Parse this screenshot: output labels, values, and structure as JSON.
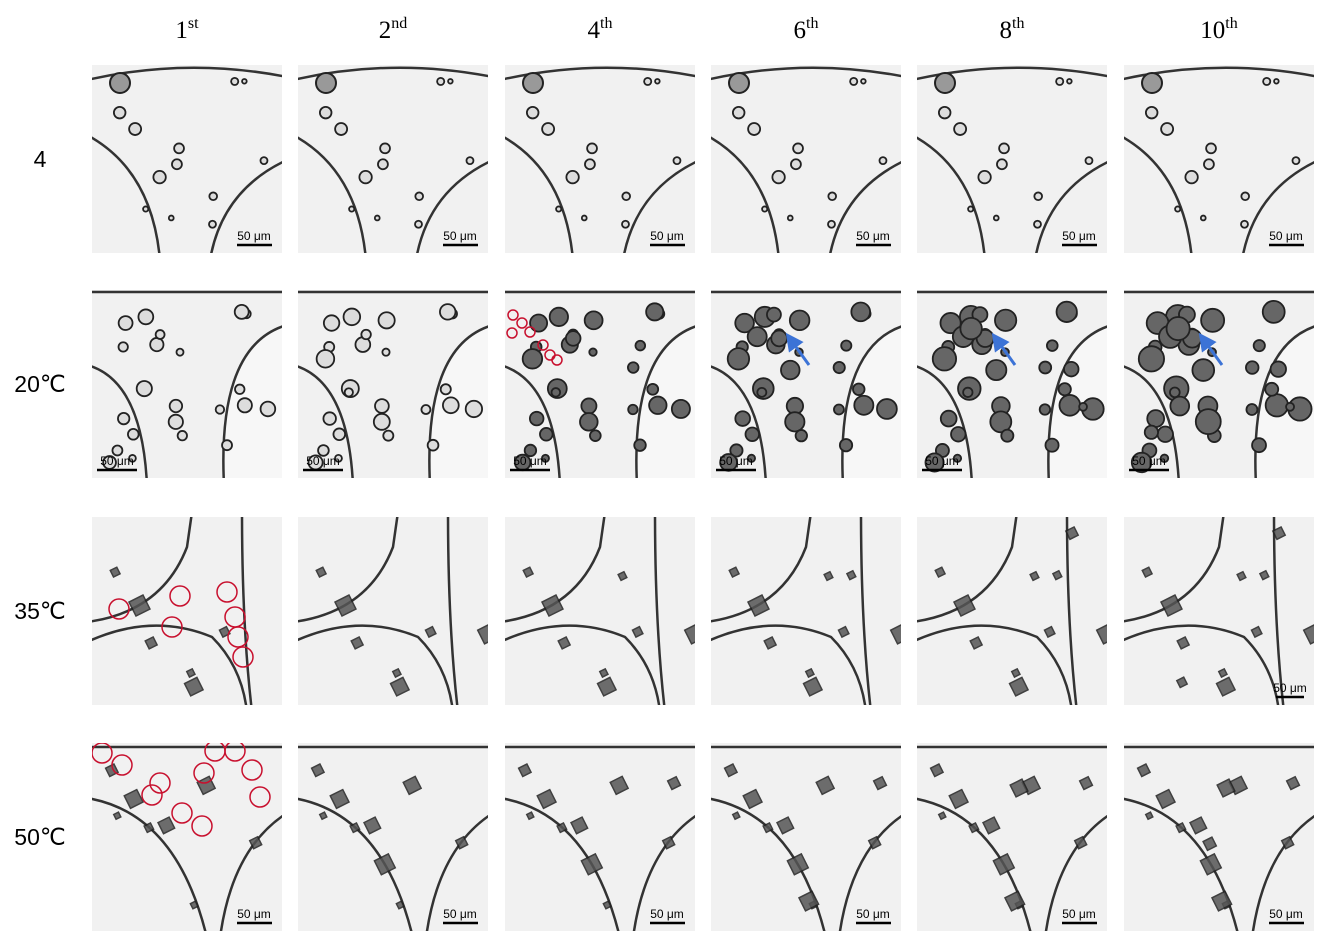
{
  "columns": [
    {
      "num": "1",
      "sup": "st"
    },
    {
      "num": "2",
      "sup": "nd"
    },
    {
      "num": "4",
      "sup": "th"
    },
    {
      "num": "6",
      "sup": "th"
    },
    {
      "num": "8",
      "sup": "th"
    },
    {
      "num": "10",
      "sup": "th"
    }
  ],
  "rows": [
    "4",
    "20℃",
    "35℃",
    "50℃"
  ],
  "scale_bar": "50 μm"
}
